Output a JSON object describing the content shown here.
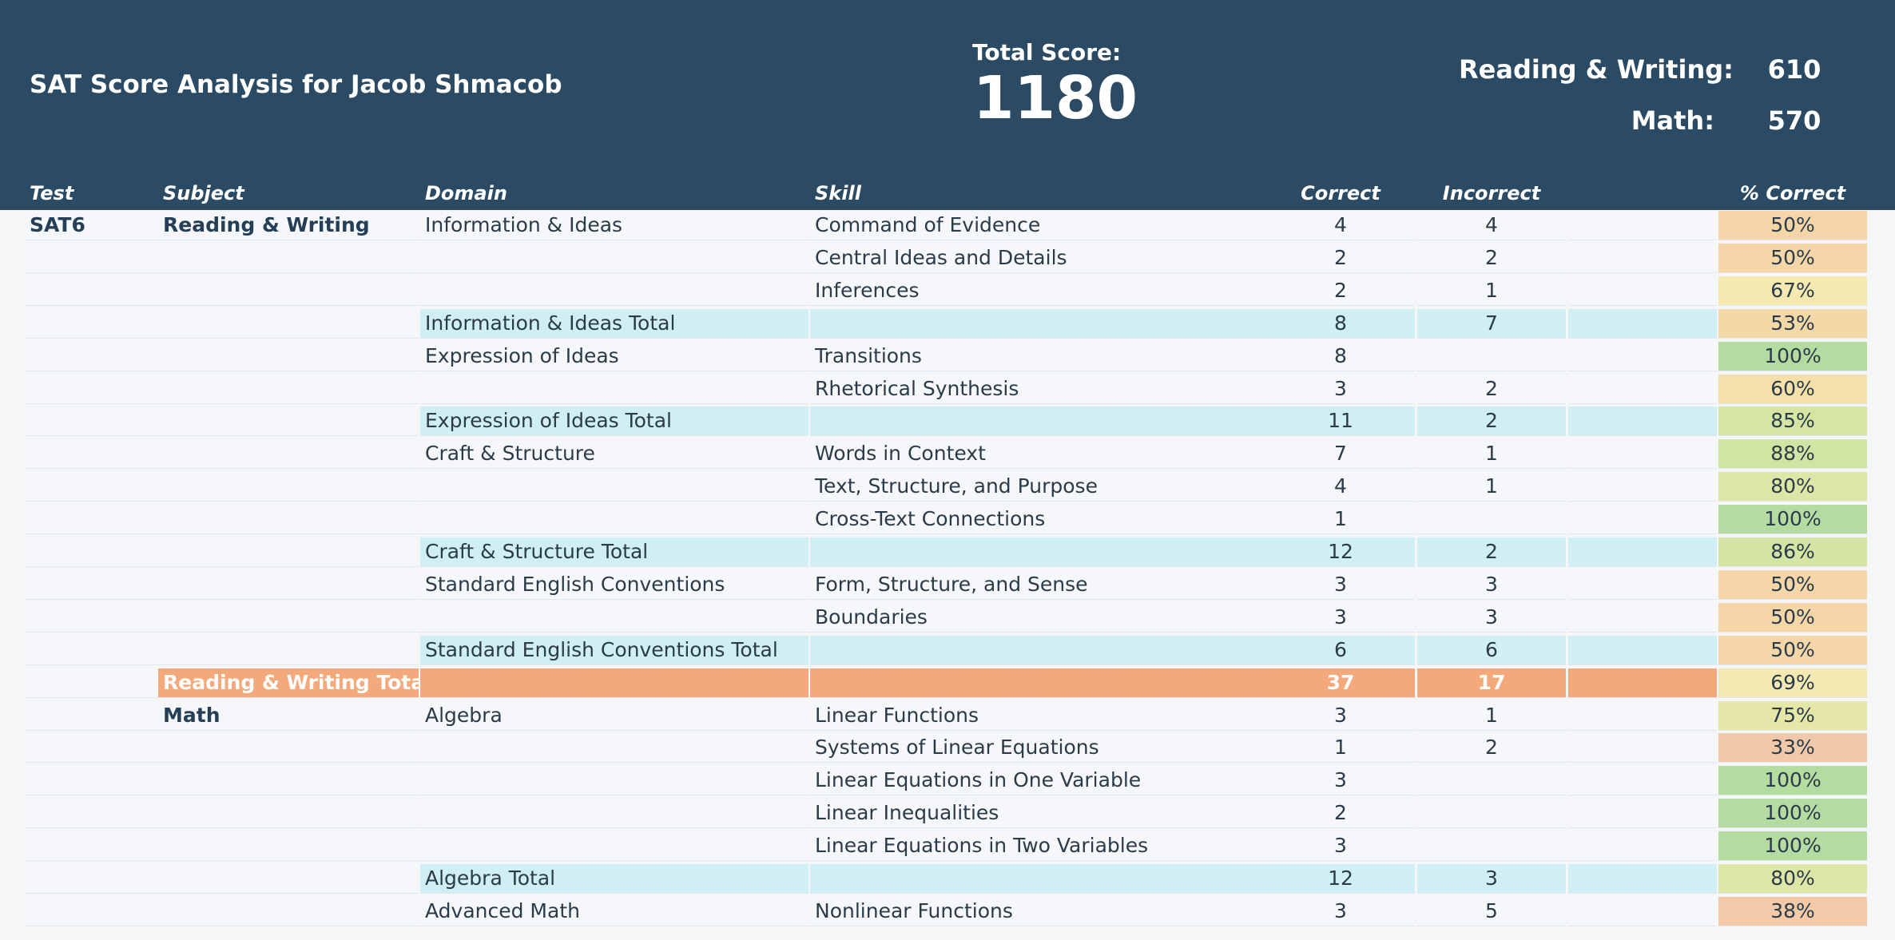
{
  "header": {
    "title": "SAT Score Analysis for Jacob Shmacob",
    "total_label": "Total Score:",
    "total_value": "1180",
    "reading_writing_label": "Reading & Writing:",
    "reading_writing_value": "610",
    "math_label": "Math:",
    "math_value": "570",
    "colors": {
      "header_background": "#2b4a63",
      "domain_total_background": "#cfeff5",
      "subject_total_background": "#f3a97c"
    }
  },
  "columns": {
    "test": "Test",
    "subject": "Subject",
    "domain": "Domain",
    "skill": "Skill",
    "correct": "Correct",
    "incorrect": "Incorrect",
    "percent": "% Correct"
  },
  "rows": [
    {
      "type": "skill",
      "test": "SAT6",
      "subject": "Reading & Writing",
      "domain": "Information & Ideas",
      "skill": "Command of Evidence",
      "correct": "4",
      "incorrect": "4",
      "percent": "50%",
      "percent_color": "#f4d6a8"
    },
    {
      "type": "skill",
      "test": "",
      "subject": "",
      "domain": "",
      "skill": "Central Ideas and Details",
      "correct": "2",
      "incorrect": "2",
      "percent": "50%",
      "percent_color": "#f4d6a8"
    },
    {
      "type": "skill",
      "test": "",
      "subject": "",
      "domain": "",
      "skill": "Inferences",
      "correct": "2",
      "incorrect": "1",
      "percent": "67%",
      "percent_color": "#f5e9b1"
    },
    {
      "type": "domain-total",
      "test": "",
      "subject": "",
      "domain": "Information & Ideas Total",
      "skill": "",
      "correct": "8",
      "incorrect": "7",
      "percent": "53%",
      "percent_color": "#f4d8a8"
    },
    {
      "type": "skill",
      "test": "",
      "subject": "",
      "domain": "Expression of Ideas",
      "skill": "Transitions",
      "correct": "8",
      "incorrect": "",
      "percent": "100%",
      "percent_color": "#b4dca1"
    },
    {
      "type": "skill",
      "test": "",
      "subject": "",
      "domain": "",
      "skill": "Rhetorical Synthesis",
      "correct": "3",
      "incorrect": "2",
      "percent": "60%",
      "percent_color": "#f5e0aa"
    },
    {
      "type": "domain-total",
      "test": "",
      "subject": "",
      "domain": "Expression of Ideas Total",
      "skill": "",
      "correct": "11",
      "incorrect": "2",
      "percent": "85%",
      "percent_color": "#d6e5a4"
    },
    {
      "type": "skill",
      "test": "",
      "subject": "",
      "domain": "Craft & Structure",
      "skill": "Words in Context",
      "correct": "7",
      "incorrect": "1",
      "percent": "88%",
      "percent_color": "#d1e4a3"
    },
    {
      "type": "skill",
      "test": "",
      "subject": "",
      "domain": "",
      "skill": "Text, Structure, and Purpose",
      "correct": "4",
      "incorrect": "1",
      "percent": "80%",
      "percent_color": "#dde6a6"
    },
    {
      "type": "skill",
      "test": "",
      "subject": "",
      "domain": "",
      "skill": "Cross-Text Connections",
      "correct": "1",
      "incorrect": "",
      "percent": "100%",
      "percent_color": "#b4dca1"
    },
    {
      "type": "domain-total",
      "test": "",
      "subject": "",
      "domain": "Craft & Structure Total",
      "skill": "",
      "correct": "12",
      "incorrect": "2",
      "percent": "86%",
      "percent_color": "#d4e4a4"
    },
    {
      "type": "skill",
      "test": "",
      "subject": "",
      "domain": "Standard English Conventions",
      "skill": "Form, Structure, and Sense",
      "correct": "3",
      "incorrect": "3",
      "percent": "50%",
      "percent_color": "#f4d6a8"
    },
    {
      "type": "skill",
      "test": "",
      "subject": "",
      "domain": "",
      "skill": "Boundaries",
      "correct": "3",
      "incorrect": "3",
      "percent": "50%",
      "percent_color": "#f4d6a8"
    },
    {
      "type": "domain-total",
      "test": "",
      "subject": "",
      "domain": "Standard English Conventions Total",
      "skill": "",
      "correct": "6",
      "incorrect": "6",
      "percent": "50%",
      "percent_color": "#f4d6a8"
    },
    {
      "type": "subject-total",
      "test": "",
      "subject": "Reading & Writing Total",
      "domain": "",
      "skill": "",
      "correct": "37",
      "incorrect": "17",
      "percent": "69%",
      "percent_color": "#f4e9b3"
    },
    {
      "type": "skill",
      "test": "",
      "subject": "Math",
      "domain": "Algebra",
      "skill": "Linear Functions",
      "correct": "3",
      "incorrect": "1",
      "percent": "75%",
      "percent_color": "#e4e7a8"
    },
    {
      "type": "skill",
      "test": "",
      "subject": "",
      "domain": "",
      "skill": "Systems of Linear Equations",
      "correct": "1",
      "incorrect": "2",
      "percent": "33%",
      "percent_color": "#f0c8aa"
    },
    {
      "type": "skill",
      "test": "",
      "subject": "",
      "domain": "",
      "skill": "Linear Equations in One Variable",
      "correct": "3",
      "incorrect": "",
      "percent": "100%",
      "percent_color": "#b4dca1"
    },
    {
      "type": "skill",
      "test": "",
      "subject": "",
      "domain": "",
      "skill": "Linear Inequalities",
      "correct": "2",
      "incorrect": "",
      "percent": "100%",
      "percent_color": "#b4dca1"
    },
    {
      "type": "skill",
      "test": "",
      "subject": "",
      "domain": "",
      "skill": "Linear Equations in Two Variables",
      "correct": "3",
      "incorrect": "",
      "percent": "100%",
      "percent_color": "#b4dca1"
    },
    {
      "type": "domain-total",
      "test": "",
      "subject": "",
      "domain": "Algebra Total",
      "skill": "",
      "correct": "12",
      "incorrect": "3",
      "percent": "80%",
      "percent_color": "#dde6a6"
    },
    {
      "type": "skill",
      "test": "",
      "subject": "",
      "domain": "Advanced Math",
      "skill": "Nonlinear Functions",
      "correct": "3",
      "incorrect": "5",
      "percent": "38%",
      "percent_color": "#f2caa9"
    }
  ]
}
